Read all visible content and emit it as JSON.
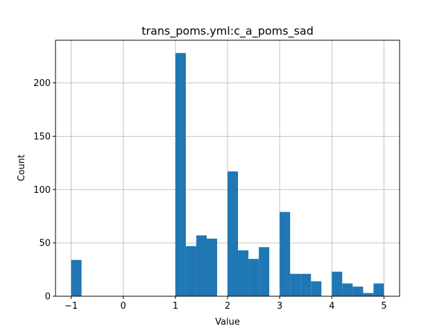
{
  "chart_data": {
    "type": "bar",
    "title": "trans_poms.yml:c_a_poms_sad",
    "xlabel": "Value",
    "ylabel": "Count",
    "xlim": [
      -1.3,
      5.3
    ],
    "ylim": [
      0,
      240
    ],
    "xticks": [
      -1,
      0,
      1,
      2,
      3,
      4,
      5
    ],
    "xtick_labels": [
      "−1",
      "0",
      "1",
      "2",
      "3",
      "4",
      "5"
    ],
    "yticks": [
      0,
      50,
      100,
      150,
      200
    ],
    "ytick_labels": [
      "0",
      "50",
      "100",
      "150",
      "200"
    ],
    "grid": true,
    "bar_color": "#1f77b4",
    "bins": [
      {
        "x0": -1.0,
        "x1": -0.8,
        "count": 34
      },
      {
        "x0": 1.0,
        "x1": 1.2,
        "count": 228
      },
      {
        "x0": 1.2,
        "x1": 1.4,
        "count": 47
      },
      {
        "x0": 1.4,
        "x1": 1.6,
        "count": 57
      },
      {
        "x0": 1.6,
        "x1": 1.8,
        "count": 54
      },
      {
        "x0": 2.0,
        "x1": 2.2,
        "count": 117
      },
      {
        "x0": 2.2,
        "x1": 2.4,
        "count": 43
      },
      {
        "x0": 2.4,
        "x1": 2.6,
        "count": 35
      },
      {
        "x0": 2.6,
        "x1": 2.8,
        "count": 46
      },
      {
        "x0": 3.0,
        "x1": 3.2,
        "count": 79
      },
      {
        "x0": 3.2,
        "x1": 3.4,
        "count": 21
      },
      {
        "x0": 3.4,
        "x1": 3.6,
        "count": 21
      },
      {
        "x0": 3.6,
        "x1": 3.8,
        "count": 14
      },
      {
        "x0": 4.0,
        "x1": 4.2,
        "count": 23
      },
      {
        "x0": 4.2,
        "x1": 4.4,
        "count": 12
      },
      {
        "x0": 4.4,
        "x1": 4.6,
        "count": 9
      },
      {
        "x0": 4.6,
        "x1": 4.8,
        "count": 3
      },
      {
        "x0": 4.8,
        "x1": 5.0,
        "count": 12
      }
    ]
  }
}
